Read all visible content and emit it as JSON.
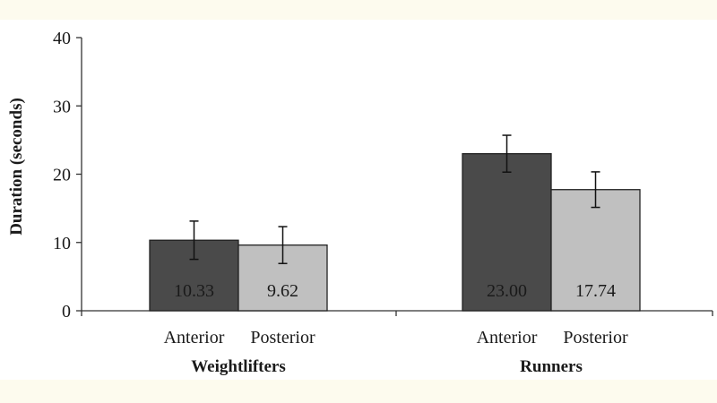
{
  "chart_data": {
    "type": "bar",
    "groups": [
      "Weightlifters",
      "Runners"
    ],
    "categories": [
      "Anterior",
      "Posterior"
    ],
    "series": [
      {
        "group": "Weightlifters",
        "values": [
          10.33,
          9.62
        ],
        "errors": [
          2.8,
          2.7
        ],
        "value_labels": [
          "10.33",
          "9.62"
        ]
      },
      {
        "group": "Runners",
        "values": [
          23.0,
          17.74
        ],
        "errors": [
          2.7,
          2.6
        ],
        "value_labels": [
          "23.00",
          "17.74"
        ]
      }
    ],
    "ylabel": "Duration (seconds)",
    "ylim": [
      0,
      40
    ],
    "yticks": [
      "0",
      "10",
      "20",
      "30",
      "40"
    ],
    "bar_colors": {
      "Anterior": "#4a4a4a",
      "Posterior": "#c0c0c0"
    },
    "grid": false,
    "legend": "none"
  }
}
